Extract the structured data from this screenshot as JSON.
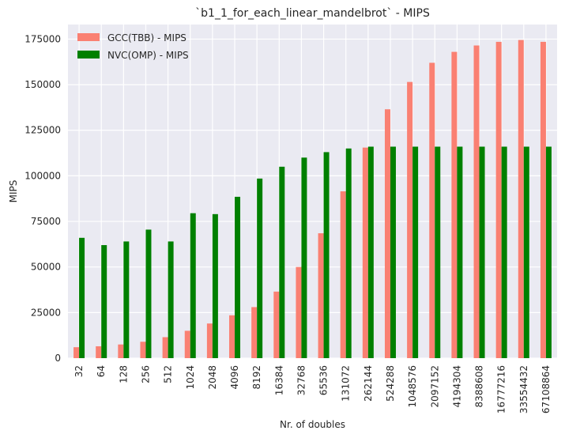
{
  "chart_data": {
    "type": "bar",
    "title": "`b1_1_for_each_linear_mandelbrot` - MIPS",
    "xlabel": "Nr. of doubles",
    "ylabel": "MIPS",
    "ylim": [
      0,
      183000
    ],
    "yticks": [
      0,
      25000,
      50000,
      75000,
      100000,
      125000,
      150000,
      175000
    ],
    "grid": true,
    "legend_position": "top-left",
    "background": "#eaeaf2",
    "categories": [
      "32",
      "64",
      "128",
      "256",
      "512",
      "1024",
      "2048",
      "4096",
      "8192",
      "16384",
      "32768",
      "65536",
      "131072",
      "262144",
      "524288",
      "1048576",
      "2097152",
      "4194304",
      "8388608",
      "16777216",
      "33554432",
      "67108864"
    ],
    "series": [
      {
        "name": "GCC(TBB) - MIPS",
        "color": "#fa8072",
        "values": [
          6000,
          6500,
          7500,
          9000,
          11500,
          15000,
          19000,
          23500,
          28000,
          36500,
          50000,
          68500,
          91500,
          115500,
          136500,
          151500,
          162000,
          168000,
          171500,
          173500,
          174500,
          173500
        ]
      },
      {
        "name": "NVC(OMP) - MIPS",
        "color": "#008000",
        "values": [
          66000,
          62000,
          64000,
          70500,
          64000,
          79500,
          79000,
          88500,
          98500,
          105000,
          110000,
          113000,
          115000,
          116000,
          116000,
          116000,
          116000,
          116000,
          116000,
          116000,
          116000,
          116000
        ]
      }
    ]
  }
}
